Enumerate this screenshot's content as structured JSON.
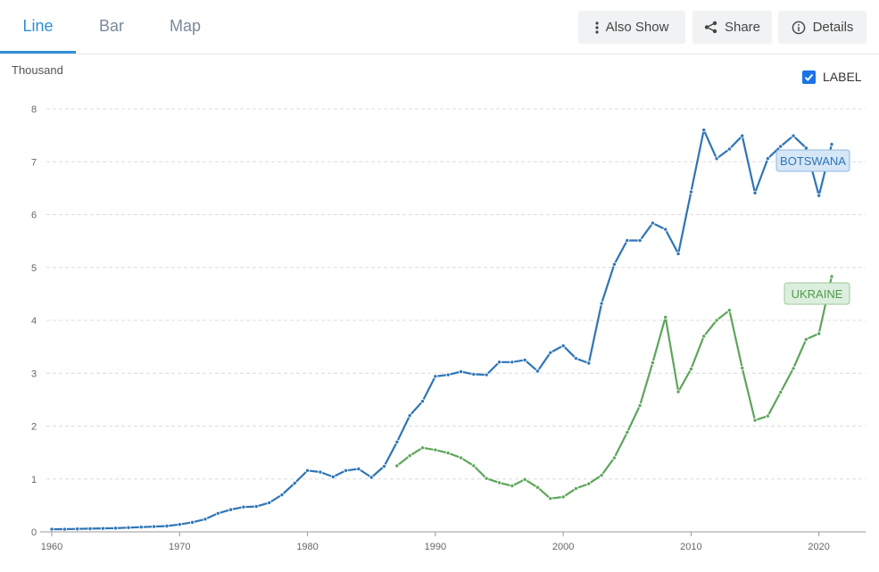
{
  "tabs": [
    {
      "label": "Line",
      "active": true
    },
    {
      "label": "Bar",
      "active": false
    },
    {
      "label": "Map",
      "active": false
    }
  ],
  "toolbar": {
    "also_show_label": "Also Show",
    "share_label": "Share",
    "details_label": "Details"
  },
  "label_toggle": {
    "label": "LABEL",
    "checked": true
  },
  "icons": {
    "also_show": "vertical-dots-icon",
    "share": "share-icon",
    "details": "info-icon",
    "label_checkbox": "checkmark-icon"
  },
  "chart_data": {
    "type": "line",
    "unit_label": "Thousand",
    "xlim": [
      1960,
      2021
    ],
    "ylim": [
      0,
      8
    ],
    "x_ticks": [
      1960,
      1970,
      1980,
      1990,
      2000,
      2010,
      2020
    ],
    "y_ticks": [
      0,
      1,
      2,
      3,
      4,
      5,
      6,
      7,
      8
    ],
    "grid": "horizontal-dashed",
    "series": [
      {
        "name": "BOTSWANA",
        "color": "#2e75b6",
        "x": [
          1960,
          1961,
          1962,
          1963,
          1964,
          1965,
          1966,
          1967,
          1968,
          1969,
          1970,
          1971,
          1972,
          1973,
          1974,
          1975,
          1976,
          1977,
          1978,
          1979,
          1980,
          1981,
          1982,
          1983,
          1984,
          1985,
          1986,
          1987,
          1988,
          1989,
          1990,
          1991,
          1992,
          1993,
          1994,
          1995,
          1996,
          1997,
          1998,
          1999,
          2000,
          2001,
          2002,
          2003,
          2004,
          2005,
          2006,
          2007,
          2008,
          2009,
          2010,
          2011,
          2012,
          2013,
          2014,
          2015,
          2016,
          2017,
          2018,
          2019,
          2020,
          2021
        ],
        "values": [
          0.05,
          0.05,
          0.055,
          0.06,
          0.065,
          0.07,
          0.08,
          0.09,
          0.1,
          0.11,
          0.14,
          0.18,
          0.24,
          0.35,
          0.42,
          0.47,
          0.48,
          0.55,
          0.7,
          0.92,
          1.16,
          1.13,
          1.04,
          1.16,
          1.19,
          1.03,
          1.24,
          1.7,
          2.2,
          2.47,
          2.94,
          2.97,
          3.03,
          2.98,
          2.97,
          3.21,
          3.21,
          3.25,
          3.04,
          3.39,
          3.52,
          3.28,
          3.19,
          4.32,
          5.06,
          5.51,
          5.51,
          5.84,
          5.72,
          5.26,
          6.43,
          7.6,
          7.06,
          7.24,
          7.49,
          6.41,
          7.06,
          7.29,
          7.49,
          7.26,
          6.36,
          7.33
        ]
      },
      {
        "name": "UKRAINE",
        "color": "#5ea55a",
        "x": [
          1987,
          1988,
          1989,
          1990,
          1991,
          1992,
          1993,
          1994,
          1995,
          1996,
          1997,
          1998,
          1999,
          2000,
          2001,
          2002,
          2003,
          2004,
          2005,
          2006,
          2007,
          2008,
          2009,
          2010,
          2011,
          2012,
          2013,
          2014,
          2015,
          2016,
          2017,
          2018,
          2019,
          2020,
          2021
        ],
        "values": [
          1.25,
          1.44,
          1.59,
          1.55,
          1.49,
          1.4,
          1.25,
          1.01,
          0.93,
          0.87,
          0.99,
          0.84,
          0.63,
          0.66,
          0.82,
          0.91,
          1.07,
          1.4,
          1.88,
          2.39,
          3.2,
          4.06,
          2.65,
          3.08,
          3.7,
          4.0,
          4.19,
          3.1,
          2.11,
          2.19,
          2.64,
          3.09,
          3.64,
          3.75,
          4.83
        ]
      }
    ],
    "series_labels": [
      "BOTSWANA",
      "UKRAINE"
    ]
  }
}
